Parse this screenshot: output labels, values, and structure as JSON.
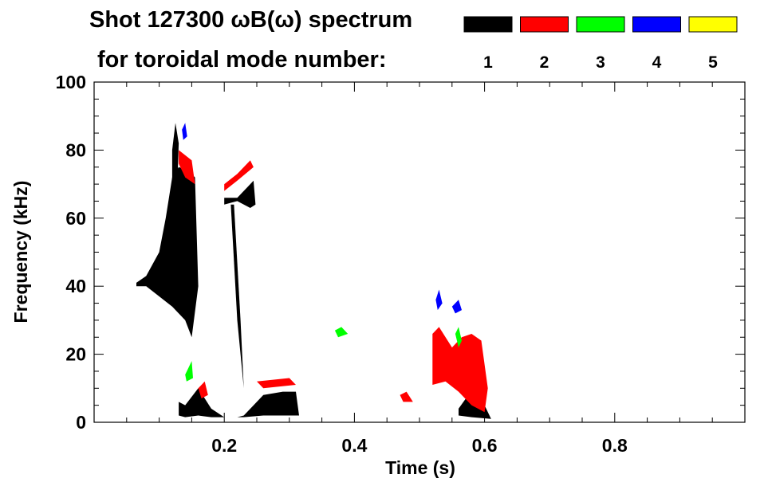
{
  "chart_data": {
    "type": "spectrogram",
    "title_line1": "Shot 127300 ωB(ω) spectrum",
    "title_line2": "for toroidal mode number:",
    "xlabel": "Time (s)",
    "ylabel": "Frequency (kHz)",
    "xlim": [
      0.0,
      1.0
    ],
    "ylim": [
      0,
      100
    ],
    "x_ticks": [
      {
        "value": 0.2,
        "label": "0.2"
      },
      {
        "value": 0.4,
        "label": "0.4"
      },
      {
        "value": 0.6,
        "label": "0.6"
      },
      {
        "value": 0.8,
        "label": "0.8"
      }
    ],
    "y_ticks": [
      {
        "value": 0,
        "label": "0"
      },
      {
        "value": 20,
        "label": "20"
      },
      {
        "value": 40,
        "label": "40"
      },
      {
        "value": 60,
        "label": "60"
      },
      {
        "value": 80,
        "label": "80"
      },
      {
        "value": 100,
        "label": "100"
      }
    ],
    "legend": [
      {
        "mode": "1",
        "color": "#000000"
      },
      {
        "mode": "2",
        "color": "#ff0000"
      },
      {
        "mode": "3",
        "color": "#00ff00"
      },
      {
        "mode": "4",
        "color": "#0000ff"
      },
      {
        "mode": "5",
        "color": "#ffff00"
      }
    ],
    "regions": [
      {
        "mode": "1",
        "points": [
          [
            0.065,
            41
          ],
          [
            0.08,
            43
          ],
          [
            0.1,
            50
          ],
          [
            0.11,
            60
          ],
          [
            0.12,
            72
          ],
          [
            0.13,
            75
          ],
          [
            0.145,
            74
          ],
          [
            0.155,
            72
          ],
          [
            0.16,
            40
          ],
          [
            0.15,
            25
          ],
          [
            0.14,
            30
          ],
          [
            0.12,
            34
          ],
          [
            0.1,
            37
          ],
          [
            0.08,
            40
          ],
          [
            0.065,
            40
          ]
        ]
      },
      {
        "mode": "1",
        "points": [
          [
            0.12,
            80
          ],
          [
            0.125,
            88
          ],
          [
            0.13,
            82
          ],
          [
            0.128,
            70
          ],
          [
            0.12,
            70
          ]
        ]
      },
      {
        "mode": "1",
        "points": [
          [
            0.13,
            6
          ],
          [
            0.14,
            5
          ],
          [
            0.16,
            10
          ],
          [
            0.18,
            4
          ],
          [
            0.2,
            1.5
          ],
          [
            0.22,
            1.5
          ],
          [
            0.23,
            2
          ],
          [
            0.26,
            8
          ],
          [
            0.29,
            9
          ],
          [
            0.31,
            9
          ],
          [
            0.315,
            2
          ],
          [
            0.3,
            2
          ],
          [
            0.26,
            2
          ],
          [
            0.23,
            1.5
          ],
          [
            0.18,
            1.5
          ],
          [
            0.16,
            2
          ],
          [
            0.14,
            1.5
          ],
          [
            0.13,
            2
          ]
        ]
      },
      {
        "mode": "1",
        "points": [
          [
            0.2,
            66
          ],
          [
            0.22,
            66
          ],
          [
            0.24,
            70
          ],
          [
            0.245,
            71
          ],
          [
            0.248,
            64
          ],
          [
            0.24,
            63
          ],
          [
            0.22,
            65
          ],
          [
            0.2,
            64
          ]
        ]
      },
      {
        "mode": "1",
        "points": [
          [
            0.56,
            4
          ],
          [
            0.59,
            12
          ],
          [
            0.6,
            5
          ],
          [
            0.61,
            1
          ],
          [
            0.58,
            1.5
          ],
          [
            0.56,
            2
          ]
        ]
      },
      {
        "mode": "1",
        "points": [
          [
            0.21,
            64
          ],
          [
            0.22,
            30
          ],
          [
            0.23,
            10
          ],
          [
            0.225,
            30
          ],
          [
            0.215,
            64
          ]
        ]
      },
      {
        "mode": "2",
        "points": [
          [
            0.13,
            80
          ],
          [
            0.15,
            77
          ],
          [
            0.155,
            70
          ],
          [
            0.14,
            72
          ],
          [
            0.13,
            76
          ]
        ]
      },
      {
        "mode": "2",
        "points": [
          [
            0.2,
            70
          ],
          [
            0.22,
            73
          ],
          [
            0.24,
            77
          ],
          [
            0.245,
            75
          ],
          [
            0.22,
            71
          ],
          [
            0.2,
            68
          ]
        ]
      },
      {
        "mode": "2",
        "points": [
          [
            0.52,
            26
          ],
          [
            0.53,
            28
          ],
          [
            0.55,
            22
          ],
          [
            0.565,
            25
          ],
          [
            0.58,
            26
          ],
          [
            0.595,
            24
          ],
          [
            0.605,
            10
          ],
          [
            0.6,
            3
          ],
          [
            0.58,
            5
          ],
          [
            0.56,
            9
          ],
          [
            0.54,
            12
          ],
          [
            0.52,
            11
          ]
        ]
      },
      {
        "mode": "2",
        "points": [
          [
            0.16,
            10
          ],
          [
            0.17,
            12
          ],
          [
            0.175,
            8
          ],
          [
            0.165,
            7
          ]
        ]
      },
      {
        "mode": "2",
        "points": [
          [
            0.25,
            12
          ],
          [
            0.3,
            13
          ],
          [
            0.31,
            11
          ],
          [
            0.26,
            10
          ]
        ]
      },
      {
        "mode": "2",
        "points": [
          [
            0.47,
            8
          ],
          [
            0.48,
            9
          ],
          [
            0.49,
            6
          ],
          [
            0.475,
            6
          ]
        ]
      },
      {
        "mode": "3",
        "points": [
          [
            0.555,
            26
          ],
          [
            0.56,
            28
          ],
          [
            0.565,
            24
          ],
          [
            0.56,
            22
          ]
        ]
      },
      {
        "mode": "3",
        "points": [
          [
            0.14,
            14
          ],
          [
            0.15,
            18
          ],
          [
            0.152,
            13
          ],
          [
            0.142,
            12
          ]
        ]
      },
      {
        "mode": "3",
        "points": [
          [
            0.37,
            27
          ],
          [
            0.38,
            28
          ],
          [
            0.39,
            26
          ],
          [
            0.375,
            25
          ]
        ]
      },
      {
        "mode": "4",
        "points": [
          [
            0.55,
            34
          ],
          [
            0.56,
            36
          ],
          [
            0.565,
            33
          ],
          [
            0.555,
            32
          ]
        ]
      },
      {
        "mode": "4",
        "points": [
          [
            0.525,
            36
          ],
          [
            0.53,
            39
          ],
          [
            0.535,
            35
          ],
          [
            0.528,
            33
          ]
        ]
      },
      {
        "mode": "4",
        "points": [
          [
            0.135,
            86
          ],
          [
            0.14,
            88
          ],
          [
            0.143,
            84
          ],
          [
            0.137,
            83
          ]
        ]
      }
    ]
  }
}
